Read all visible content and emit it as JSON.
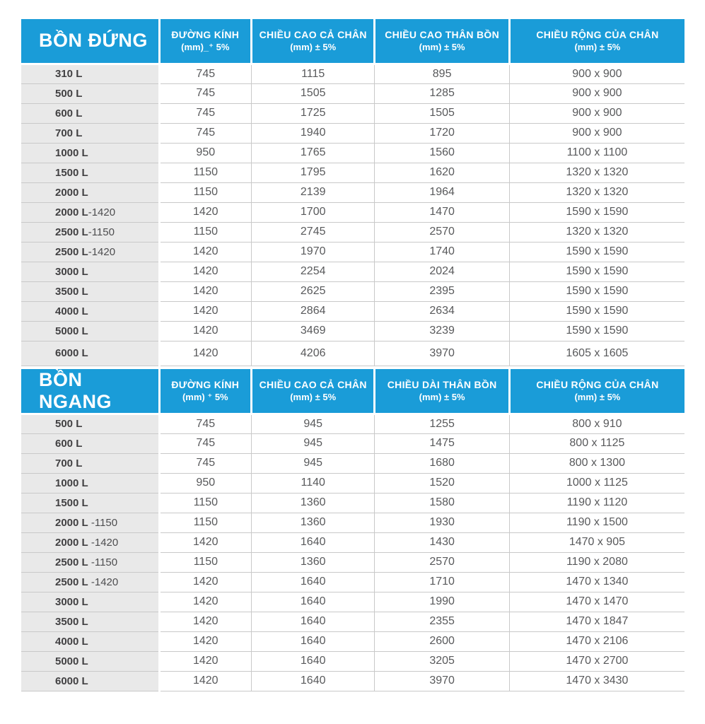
{
  "colors": {
    "header_bg": "#1a9cd8",
    "header_text": "#ffffff",
    "label_column_bg": "#e9e9e9",
    "row_border": "#c9c9c9",
    "label_text": "#414042",
    "data_text": "#58595b"
  },
  "tables": [
    {
      "title": "BỒN ĐỨNG",
      "columns": [
        {
          "line1": "ĐƯỜNG KÍNH",
          "line2": "(mm)_⁺ 5%"
        },
        {
          "line1": "CHIỀU CAO CẢ CHÂN",
          "line2": "(mm) ± 5%"
        },
        {
          "line1": "CHIỀU CAO THÂN BỒN",
          "line2": "(mm) ± 5%"
        },
        {
          "line1": "CHIỀU RỘNG CỦA CHÂN",
          "line2": "(mm) ± 5%"
        }
      ],
      "rows": [
        {
          "label": "310 L",
          "suffix": "",
          "values": [
            "745",
            "1115",
            "895",
            "900 x 900"
          ]
        },
        {
          "label": "500 L",
          "suffix": "",
          "values": [
            "745",
            "1505",
            "1285",
            "900 x 900"
          ]
        },
        {
          "label": "600 L",
          "suffix": "",
          "values": [
            "745",
            "1725",
            "1505",
            "900 x 900"
          ]
        },
        {
          "label": "700 L",
          "suffix": "",
          "values": [
            "745",
            "1940",
            "1720",
            "900 x 900"
          ]
        },
        {
          "label": "1000 L",
          "suffix": "",
          "values": [
            "950",
            "1765",
            "1560",
            "1100 x 1100"
          ]
        },
        {
          "label": "1500 L",
          "suffix": "",
          "values": [
            "1150",
            "1795",
            "1620",
            "1320 x 1320"
          ]
        },
        {
          "label": "2000 L",
          "suffix": "",
          "values": [
            "1150",
            "2139",
            "1964",
            "1320 x 1320"
          ]
        },
        {
          "label": "2000 L",
          "suffix": "-1420",
          "values": [
            "1420",
            "1700",
            "1470",
            "1590 x 1590"
          ]
        },
        {
          "label": "2500 L",
          "suffix": "-1150",
          "values": [
            "1150",
            "2745",
            "2570",
            "1320 x 1320"
          ]
        },
        {
          "label": "2500 L",
          "suffix": "-1420",
          "values": [
            "1420",
            "1970",
            "1740",
            "1590 x 1590"
          ]
        },
        {
          "label": "3000 L",
          "suffix": "",
          "values": [
            "1420",
            "2254",
            "2024",
            "1590 x 1590"
          ]
        },
        {
          "label": "3500 L",
          "suffix": "",
          "values": [
            "1420",
            "2625",
            "2395",
            "1590 x 1590"
          ]
        },
        {
          "label": "4000 L",
          "suffix": "",
          "values": [
            "1420",
            "2864",
            "2634",
            "1590 x 1590"
          ]
        },
        {
          "label": "5000 L",
          "suffix": "",
          "values": [
            "1420",
            "3469",
            "3239",
            "1590 x 1590"
          ]
        },
        {
          "label": "6000 L",
          "suffix": "",
          "values": [
            "1420",
            "4206",
            "3970",
            "1605 x 1605"
          ]
        }
      ]
    },
    {
      "title": "BỒN NGANG",
      "columns": [
        {
          "line1": "ĐƯỜNG KÍNH",
          "line2": "(mm) ⁺ 5%"
        },
        {
          "line1": "CHIỀU CAO CẢ CHÂN",
          "line2": "(mm) ± 5%"
        },
        {
          "line1": "CHIỀU DÀI THÂN BỒN",
          "line2": "(mm) ± 5%"
        },
        {
          "line1": "CHIỀU RỘNG CỦA CHÂN",
          "line2": "(mm) ± 5%"
        }
      ],
      "rows": [
        {
          "label": "500 L",
          "suffix": "",
          "values": [
            "745",
            "945",
            "1255",
            "800 x 910"
          ]
        },
        {
          "label": "600 L",
          "suffix": "",
          "values": [
            "745",
            "945",
            "1475",
            "800 x 1125"
          ]
        },
        {
          "label": "700 L",
          "suffix": "",
          "values": [
            "745",
            "945",
            "1680",
            "800 x 1300"
          ]
        },
        {
          "label": "1000 L",
          "suffix": "",
          "values": [
            "950",
            "1140",
            "1520",
            "1000 x 1125"
          ]
        },
        {
          "label": "1500 L",
          "suffix": "",
          "values": [
            "1150",
            "1360",
            "1580",
            "1190 x 1120"
          ]
        },
        {
          "label": "2000 L",
          "suffix": " -1150",
          "values": [
            "1150",
            "1360",
            "1930",
            "1190 x 1500"
          ]
        },
        {
          "label": "2000 L",
          "suffix": " -1420",
          "values": [
            "1420",
            "1640",
            "1430",
            "1470 x 905"
          ]
        },
        {
          "label": "2500 L",
          "suffix": " -1150",
          "values": [
            "1150",
            "1360",
            "2570",
            "1190 x 2080"
          ]
        },
        {
          "label": "2500 L",
          "suffix": " -1420",
          "values": [
            "1420",
            "1640",
            "1710",
            "1470 x 1340"
          ]
        },
        {
          "label": "3000 L",
          "suffix": "",
          "values": [
            "1420",
            "1640",
            "1990",
            "1470 x 1470"
          ]
        },
        {
          "label": "3500 L",
          "suffix": "",
          "values": [
            "1420",
            "1640",
            "2355",
            "1470 x 1847"
          ]
        },
        {
          "label": "4000 L",
          "suffix": "",
          "values": [
            "1420",
            "1640",
            "2600",
            "1470 x 2106"
          ]
        },
        {
          "label": "5000 L",
          "suffix": "",
          "values": [
            "1420",
            "1640",
            "3205",
            "1470 x 2700"
          ]
        },
        {
          "label": "6000 L",
          "suffix": "",
          "values": [
            "1420",
            "1640",
            "3970",
            "1470 x 3430"
          ]
        }
      ]
    }
  ]
}
